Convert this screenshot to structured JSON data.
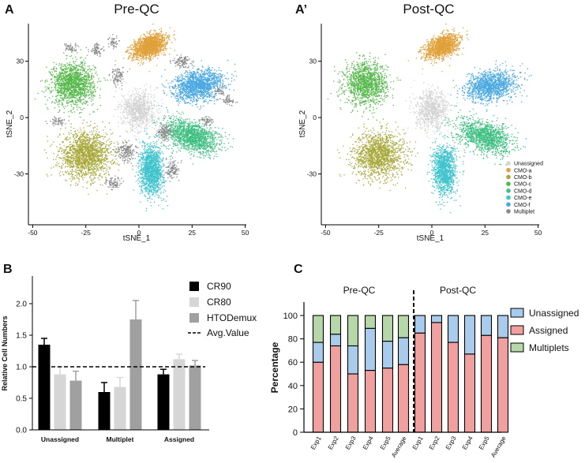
{
  "colors": {
    "unassigned": "#d3d3d3",
    "cmo_a": "#e0a13a",
    "cmo_b": "#a8a83a",
    "cmo_c": "#55b84a",
    "cmo_d": "#3fbf82",
    "cmo_e": "#3fc3cc",
    "cmo_f": "#4aa8e2",
    "multiplet": "#8a8a8a",
    "cr90": "#000000",
    "cr80": "#d6d6d6",
    "htodemux": "#a0a0a0",
    "stack_unassigned": "#a9cbec",
    "stack_assigned": "#f1a0a0",
    "stack_multiplets": "#b6d7a8"
  },
  "chart_data": [
    {
      "panel": "A",
      "type": "scatter",
      "title": "Pre-QC",
      "xlabel": "tSNE_1",
      "ylabel": "tSNE_2",
      "xlim": [
        -52,
        52
      ],
      "ylim": [
        -55,
        50
      ],
      "xticks": [
        "-50",
        "-25",
        "0",
        "25",
        "50"
      ],
      "xtick_values": [
        -50,
        -25,
        0,
        25,
        50
      ],
      "yticks": [
        "-30",
        "0",
        "30"
      ],
      "ytick_values": [
        -30,
        0,
        30
      ],
      "clusters": [
        {
          "name": "CMO-a",
          "key": "cmo_a",
          "cx": 5,
          "cy": 38,
          "sx": 8,
          "sy": 5,
          "angle": 30,
          "n": 1500
        },
        {
          "name": "CMO-b",
          "key": "cmo_b",
          "cx": -25,
          "cy": -20,
          "sx": 11,
          "sy": 11,
          "angle": 0,
          "n": 1700
        },
        {
          "name": "CMO-c",
          "key": "cmo_c",
          "cx": -31,
          "cy": 18,
          "sx": 9,
          "sy": 10,
          "angle": 0,
          "n": 1500
        },
        {
          "name": "CMO-d",
          "key": "cmo_d",
          "cx": 25,
          "cy": -10,
          "sx": 12,
          "sy": 7,
          "angle": -25,
          "n": 1500
        },
        {
          "name": "CMO-e",
          "key": "cmo_e",
          "cx": 6,
          "cy": -28,
          "sx": 5,
          "sy": 12,
          "angle": 0,
          "n": 1400
        },
        {
          "name": "CMO-f",
          "key": "cmo_f",
          "cx": 28,
          "cy": 17,
          "sx": 11,
          "sy": 7,
          "angle": 15,
          "n": 1500
        },
        {
          "name": "Unassigned",
          "key": "unassigned",
          "cx": 0,
          "cy": 4,
          "sx": 7,
          "sy": 9,
          "angle": 0,
          "n": 900
        },
        {
          "name": "Multiplet",
          "key": "multiplet",
          "cx": -6,
          "cy": -18,
          "sx": 4,
          "sy": 5,
          "angle": 0,
          "n": 180
        },
        {
          "name": "Multiplet",
          "key": "multiplet",
          "cx": 12,
          "cy": -8,
          "sx": 3,
          "sy": 4,
          "angle": 0,
          "n": 140
        },
        {
          "name": "Multiplet",
          "key": "multiplet",
          "cx": 16,
          "cy": -28,
          "sx": 3,
          "sy": 4,
          "angle": 0,
          "n": 120
        },
        {
          "name": "Multiplet",
          "key": "multiplet",
          "cx": -12,
          "cy": -35,
          "sx": 3,
          "sy": 3,
          "angle": 0,
          "n": 90
        },
        {
          "name": "Multiplet",
          "key": "multiplet",
          "cx": 20,
          "cy": 30,
          "sx": 4,
          "sy": 3,
          "angle": 0,
          "n": 110
        },
        {
          "name": "Multiplet",
          "key": "multiplet",
          "cx": -32,
          "cy": 37,
          "sx": 3,
          "sy": 2,
          "angle": 0,
          "n": 60
        },
        {
          "name": "Multiplet",
          "key": "multiplet",
          "cx": -20,
          "cy": 36,
          "sx": 3,
          "sy": 3,
          "angle": 0,
          "n": 80
        },
        {
          "name": "Multiplet",
          "key": "multiplet",
          "cx": -10,
          "cy": 22,
          "sx": 3,
          "sy": 4,
          "angle": 0,
          "n": 100
        },
        {
          "name": "Multiplet",
          "key": "multiplet",
          "cx": -38,
          "cy": -2,
          "sx": 3,
          "sy": 2,
          "angle": 0,
          "n": 60
        },
        {
          "name": "Multiplet",
          "key": "multiplet",
          "cx": -12,
          "cy": 40,
          "sx": 2,
          "sy": 3,
          "angle": 0,
          "n": 50
        },
        {
          "name": "Multiplet",
          "key": "multiplet",
          "cx": 32,
          "cy": -2,
          "sx": 3,
          "sy": 2,
          "angle": 0,
          "n": 60
        },
        {
          "name": "Multiplet",
          "key": "multiplet",
          "cx": 42,
          "cy": 9,
          "sx": 3,
          "sy": 2,
          "angle": 0,
          "n": 60
        },
        {
          "name": "Multiplet",
          "key": "multiplet",
          "cx": 38,
          "cy": 14,
          "sx": 2,
          "sy": 2,
          "angle": 0,
          "n": 40
        }
      ]
    },
    {
      "panel": "A'",
      "type": "scatter",
      "title": "Post-QC",
      "xlabel": "tSNE_1",
      "ylabel": "tSNE_2",
      "xlim": [
        -52,
        52
      ],
      "ylim": [
        -55,
        50
      ],
      "xticks": [
        "-50",
        "-25",
        "0",
        "25",
        "50"
      ],
      "xtick_values": [
        -50,
        -25,
        0,
        25,
        50
      ],
      "yticks": [
        "-30",
        "0",
        "30"
      ],
      "ytick_values": [
        -30,
        0,
        30
      ],
      "legend": [
        "Unassigned",
        "CMO-a",
        "CMO-b",
        "CMO-c",
        "CMO-d",
        "CMO-e",
        "CMO-f",
        "Multiplet"
      ],
      "legend_keys": [
        "unassigned",
        "cmo_a",
        "cmo_b",
        "cmo_c",
        "cmo_d",
        "cmo_e",
        "cmo_f",
        "multiplet"
      ],
      "clusters": [
        {
          "name": "CMO-a",
          "key": "cmo_a",
          "cx": 5,
          "cy": 38,
          "sx": 8,
          "sy": 5,
          "angle": 30,
          "n": 1300
        },
        {
          "name": "CMO-b",
          "key": "cmo_b",
          "cx": -25,
          "cy": -20,
          "sx": 11,
          "sy": 11,
          "angle": 0,
          "n": 1500
        },
        {
          "name": "CMO-c",
          "key": "cmo_c",
          "cx": -31,
          "cy": 18,
          "sx": 9,
          "sy": 10,
          "angle": 0,
          "n": 1300
        },
        {
          "name": "CMO-d",
          "key": "cmo_d",
          "cx": 25,
          "cy": -10,
          "sx": 12,
          "sy": 7,
          "angle": -25,
          "n": 1300
        },
        {
          "name": "CMO-e",
          "key": "cmo_e",
          "cx": 6,
          "cy": -28,
          "sx": 5,
          "sy": 12,
          "angle": 0,
          "n": 1200
        },
        {
          "name": "CMO-f",
          "key": "cmo_f",
          "cx": 28,
          "cy": 17,
          "sx": 11,
          "sy": 7,
          "angle": 15,
          "n": 1300
        },
        {
          "name": "Unassigned",
          "key": "unassigned",
          "cx": 0,
          "cy": 4,
          "sx": 7,
          "sy": 9,
          "angle": 0,
          "n": 800
        }
      ]
    },
    {
      "panel": "B",
      "type": "bar",
      "ylabel": "Relative Cell Numbers",
      "ylim": [
        0,
        2.5
      ],
      "yticks": [
        "0.0",
        "0.5",
        "1.0",
        "1.5",
        "2.0"
      ],
      "ytick_values": [
        0,
        0.5,
        1.0,
        1.5,
        2.0
      ],
      "categories": [
        "Unassigned",
        "Multiplet",
        "Assigned"
      ],
      "series": [
        {
          "name": "CR90",
          "color_key": "cr90",
          "values": [
            1.35,
            0.6,
            0.88
          ],
          "errors": [
            0.1,
            0.15,
            0.08
          ]
        },
        {
          "name": "CR80",
          "color_key": "cr80",
          "values": [
            0.88,
            0.68,
            1.12
          ],
          "errors": [
            0.12,
            0.15,
            0.08
          ]
        },
        {
          "name": "HTODemux",
          "color_key": "htodemux",
          "values": [
            0.78,
            1.75,
            1.02
          ],
          "errors": [
            0.15,
            0.3,
            0.08
          ]
        }
      ],
      "reference_line": {
        "label": "Avg.Value",
        "value": 1.0
      },
      "legend": [
        "CR90",
        "CR80",
        "HTODemux",
        "Avg.Value"
      ]
    },
    {
      "panel": "C",
      "type": "bar",
      "stacked": true,
      "ylabel": "Percentage",
      "ylim": [
        0,
        100
      ],
      "yticks": [
        "0",
        "20",
        "40",
        "60",
        "80",
        "100"
      ],
      "ytick_values": [
        0,
        20,
        40,
        60,
        80,
        100
      ],
      "groups": [
        "Pre-QC",
        "Post-QC"
      ],
      "categories": [
        "Exp1",
        "Exp2",
        "Exp3",
        "Exp4",
        "Exp5",
        "Average",
        "Exp1",
        "Exp2",
        "Exp3",
        "Exp4",
        "Exp5",
        "Average"
      ],
      "series": [
        {
          "name": "Assigned",
          "color_key": "stack_assigned",
          "values": [
            60,
            74,
            50,
            53,
            55,
            58,
            85,
            94,
            77,
            67,
            83,
            81
          ]
        },
        {
          "name": "Unassigned",
          "color_key": "stack_unassigned",
          "values": [
            17,
            10,
            24,
            36,
            23,
            23,
            15,
            6,
            23,
            33,
            17,
            19
          ]
        },
        {
          "name": "Multiplets",
          "color_key": "stack_multiplets",
          "values": [
            23,
            16,
            26,
            11,
            22,
            19,
            0,
            0,
            0,
            0,
            0,
            0
          ]
        }
      ],
      "legend": [
        "Unassigned",
        "Assigned",
        "Multiplets"
      ],
      "legend_keys": [
        "stack_unassigned",
        "stack_assigned",
        "stack_multiplets"
      ]
    }
  ],
  "panels": {
    "a_label": "A",
    "a2_label": "A’",
    "b_label": "B",
    "c_label": "C"
  }
}
